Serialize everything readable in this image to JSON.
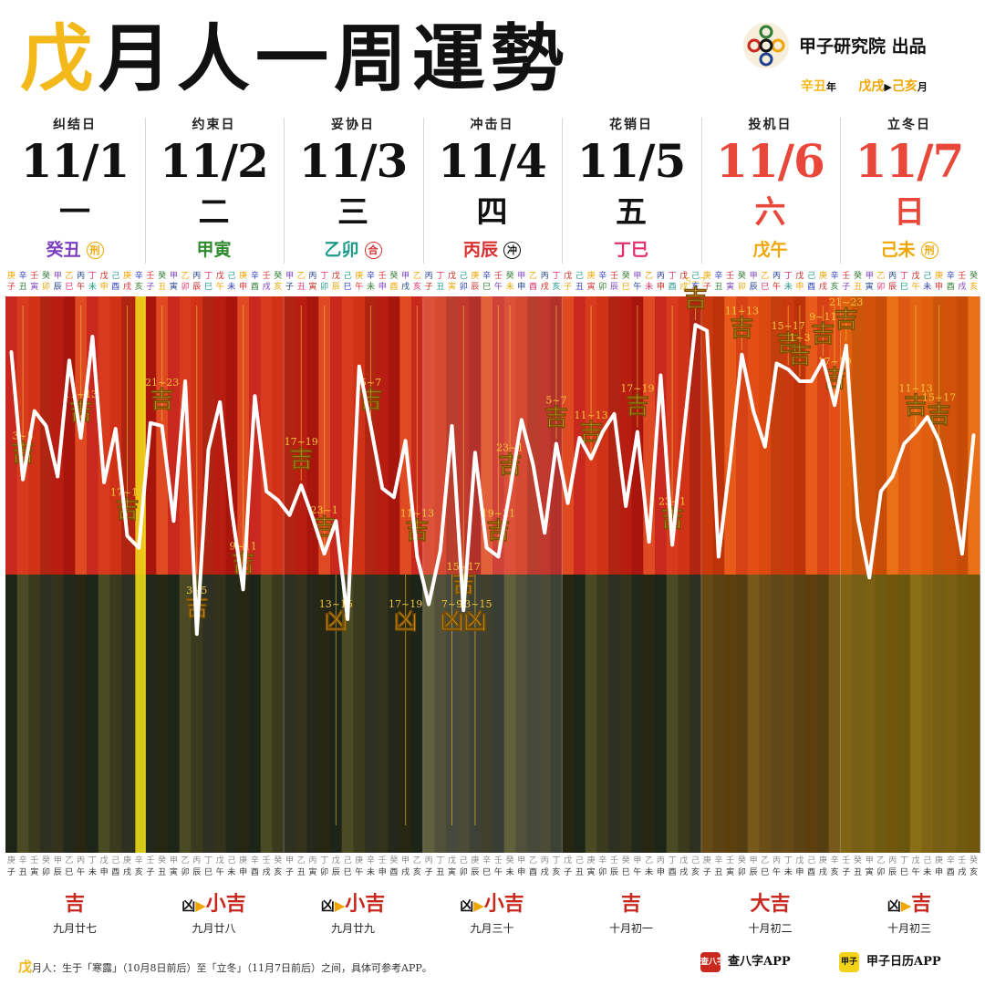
{
  "header": {
    "title_first": "戊",
    "title_rest": "月人一周運勢",
    "brand": "甲子研究院 出品",
    "year_ganzhi": "辛丑",
    "year_suffix": "年",
    "month_from": "戊戌",
    "month_to": "己亥",
    "month_suffix": "月"
  },
  "days": [
    {
      "label": "纠结日",
      "date": "11/1",
      "weekday": "一",
      "ganzhi": "癸丑",
      "badge": "刑",
      "gz_color": "#7b3fbf",
      "date_color": "#111111",
      "badge_color": "#f0a500"
    },
    {
      "label": "约束日",
      "date": "11/2",
      "weekday": "二",
      "ganzhi": "甲寅",
      "badge": "",
      "gz_color": "#2e8b2e",
      "date_color": "#111111",
      "badge_color": ""
    },
    {
      "label": "妥协日",
      "date": "11/3",
      "weekday": "三",
      "ganzhi": "乙卯",
      "badge": "合",
      "gz_color": "#1d9b8a",
      "date_color": "#111111",
      "badge_color": "#d92f2f"
    },
    {
      "label": "冲击日",
      "date": "11/4",
      "weekday": "四",
      "ganzhi": "丙辰",
      "badge": "冲",
      "gz_color": "#d92f2f",
      "date_color": "#111111",
      "badge_color": "#111111"
    },
    {
      "label": "花销日",
      "date": "11/5",
      "weekday": "五",
      "ganzhi": "丁巳",
      "badge": "",
      "gz_color": "#e0306a",
      "date_color": "#111111",
      "badge_color": ""
    },
    {
      "label": "投机日",
      "date": "11/6",
      "weekday": "六",
      "ganzhi": "戊午",
      "badge": "",
      "gz_color": "#f0a500",
      "date_color": "#e8473a",
      "badge_color": ""
    },
    {
      "label": "立冬日",
      "date": "11/7",
      "weekday": "日",
      "ganzhi": "己未",
      "badge": "刑",
      "gz_color": "#f0a500",
      "date_color": "#e8473a",
      "badge_color": "#f0a500"
    }
  ],
  "stems_row": "壬癸甲乙丙丁戊己庚辛",
  "branches_row": "子丑寅卯辰巳午未申酉戌亥",
  "chart_data": {
    "type": "line",
    "title": "",
    "xlabel": "",
    "ylabel": "",
    "y_baseline_label_good": "吉",
    "y_baseline_label_bad": "凶",
    "x_unit": "two-hour period (時辰), 12 per day, 11/1–11/7",
    "series": [
      {
        "name": "",
        "values": [
          7.5,
          3.2,
          5.5,
          5.0,
          3.3,
          7.2,
          4.6,
          8.0,
          3.1,
          4.9,
          1.3,
          0.9,
          5.1,
          5.0,
          1.8,
          6.5,
          -2.0,
          4.2,
          5.8,
          2.2,
          -0.5,
          6.0,
          2.8,
          2.5,
          2.0,
          3.0,
          1.9,
          0.7,
          1.8,
          -1.5,
          7.0,
          5.0,
          2.9,
          2.6,
          4.5,
          0.6,
          -1.0,
          0.8,
          5.0,
          -1.2,
          4.1,
          0.9,
          0.6,
          2.8,
          5.2,
          3.7,
          1.4,
          4.4,
          2.4,
          4.6,
          3.9,
          4.8,
          5.4,
          2.3,
          4.8,
          1.1,
          6.7,
          1.0,
          4.8,
          8.4,
          8.2,
          0.6,
          3.8,
          7.4,
          5.5,
          4.3,
          7.1,
          6.9,
          6.5,
          6.5,
          7.2,
          5.7,
          7.7,
          1.9,
          -0.1,
          2.8,
          3.3,
          4.4,
          4.8,
          5.3,
          4.5,
          3.0,
          0.7,
          4.7
        ]
      }
    ],
    "ylim": [
      -7,
      11
    ],
    "good_marks": [
      {
        "label": "3~5",
        "text": "吉"
      },
      {
        "label": "11~13",
        "text": "吉"
      },
      {
        "label": "17~19",
        "text": "吉"
      },
      {
        "label": "21~23",
        "text": "吉"
      },
      {
        "label": "3~5",
        "text": "吉"
      },
      {
        "label": "9~11",
        "text": "吉"
      },
      {
        "label": "17~19",
        "text": "吉"
      },
      {
        "label": "23~1",
        "text": "吉"
      },
      {
        "label": "5~7",
        "text": "吉"
      },
      {
        "label": "11~13",
        "text": "吉"
      },
      {
        "label": "15~17",
        "text": "吉"
      },
      {
        "label": "19~21",
        "text": "吉"
      },
      {
        "label": "23~1",
        "text": "吉"
      },
      {
        "label": "5~7",
        "text": "吉"
      },
      {
        "label": "11~13",
        "text": "吉"
      },
      {
        "label": "17~19",
        "text": "吉"
      },
      {
        "label": "23~1",
        "text": "吉"
      },
      {
        "label": "5~7",
        "text": "吉"
      },
      {
        "label": "11~13",
        "text": "吉"
      },
      {
        "label": "15~17",
        "text": "吉"
      },
      {
        "label": "1~3",
        "text": "吉"
      },
      {
        "label": "9~11",
        "text": "吉"
      },
      {
        "label": "17~19",
        "text": "吉"
      },
      {
        "label": "21~23",
        "text": "吉"
      },
      {
        "label": "11~13",
        "text": "吉"
      },
      {
        "label": "15~17",
        "text": "吉"
      }
    ],
    "bad_marks": [
      {
        "label": "13~15",
        "text": "凶"
      },
      {
        "label": "17~19",
        "text": "凶"
      },
      {
        "label": "7~9",
        "text": "凶"
      },
      {
        "label": "13~15",
        "text": "凶"
      }
    ]
  },
  "summary": [
    {
      "pre": "",
      "level": "吉",
      "lunar": "九月廿七"
    },
    {
      "pre": "凶",
      "level": "小吉",
      "lunar": "九月廿八"
    },
    {
      "pre": "凶",
      "level": "小吉",
      "lunar": "九月廿九"
    },
    {
      "pre": "凶",
      "level": "小吉",
      "lunar": "九月三十"
    },
    {
      "pre": "",
      "level": "吉",
      "lunar": "十月初一"
    },
    {
      "pre": "",
      "level": "大吉",
      "lunar": "十月初二"
    },
    {
      "pre": "凶",
      "level": "吉",
      "lunar": "十月初三"
    }
  ],
  "footer": {
    "note_key": "戊",
    "note": "月人：生于「寒露」（10月8日前后）至「立冬」（11月7日前后）之间，具体可参考APP。",
    "app1_icon": "查八字",
    "app1": "查八字APP",
    "app2_icon": "甲子",
    "app2": "甲子日历APP"
  }
}
